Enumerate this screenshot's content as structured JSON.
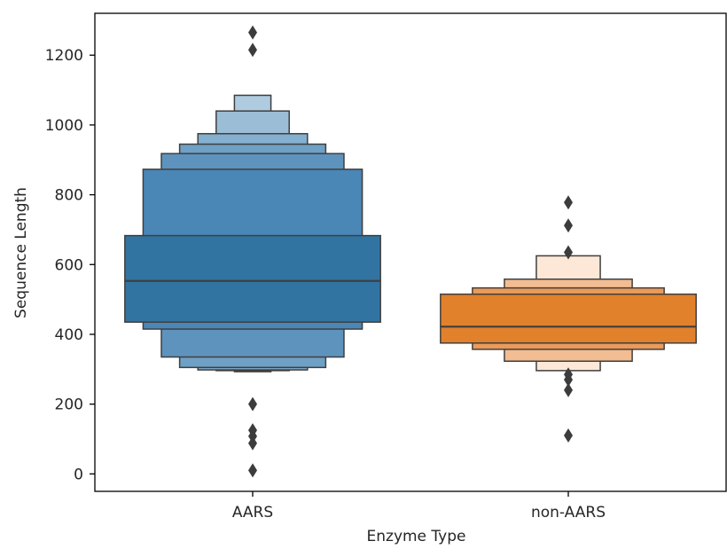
{
  "chart_data": {
    "type": "boxen",
    "title": "",
    "xlabel": "Enzyme Type",
    "ylabel": "Sequence Length",
    "ylim": [
      -50,
      1320
    ],
    "yticks": [
      0,
      200,
      400,
      600,
      800,
      1000,
      1200
    ],
    "categories": [
      "AARS",
      "non-AARS"
    ],
    "grid": false,
    "groups": [
      {
        "category": "AARS",
        "color": "#2e74a8",
        "median": 553,
        "boxes": [
          {
            "low": 435,
            "high": 683,
            "fill": "#3274a1"
          },
          {
            "low": 415,
            "high": 873,
            "fill": "#4a86b6"
          },
          {
            "low": 335,
            "high": 918,
            "fill": "#5e93bd"
          },
          {
            "low": 305,
            "high": 945,
            "fill": "#6fa0c5"
          },
          {
            "low": 298,
            "high": 975,
            "fill": "#85afce"
          },
          {
            "low": 296,
            "high": 1040,
            "fill": "#9bbed6"
          },
          {
            "low": 293,
            "high": 1085,
            "fill": "#afcbdf"
          }
        ],
        "outliers": [
          10,
          88,
          108,
          125,
          200,
          1215,
          1265
        ]
      },
      {
        "category": "non-AARS",
        "color": "#e1812c",
        "median": 422,
        "boxes": [
          {
            "low": 375,
            "high": 515,
            "fill": "#e1812c"
          },
          {
            "low": 357,
            "high": 533,
            "fill": "#ea9a5a"
          },
          {
            "low": 323,
            "high": 558,
            "fill": "#f2bd92"
          },
          {
            "low": 296,
            "high": 625,
            "fill": "#fde7d6"
          }
        ],
        "outliers": [
          110,
          240,
          270,
          285,
          635,
          712,
          778
        ]
      }
    ]
  }
}
